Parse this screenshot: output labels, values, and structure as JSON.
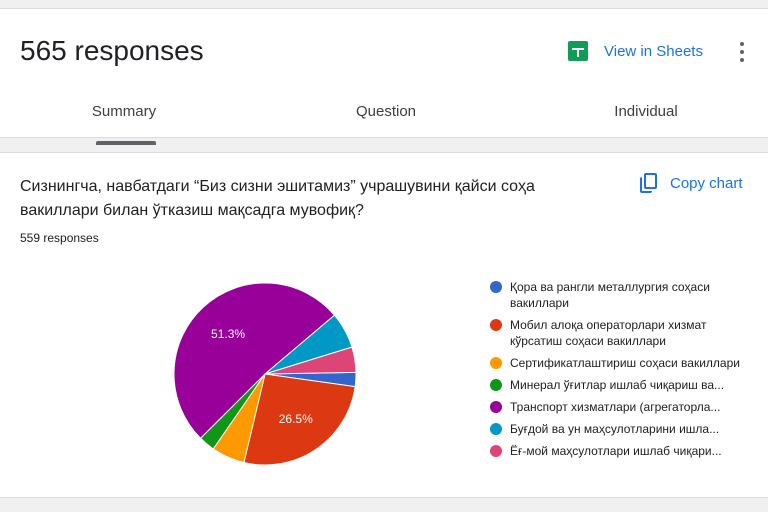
{
  "header": {
    "responses_title": "565 responses",
    "sheets_label": "View in Sheets",
    "sheets_icon": "sheets-icon",
    "menu_icon": "more-vert-icon"
  },
  "tabs": [
    {
      "label": "Summary",
      "active": true
    },
    {
      "label": "Question",
      "active": false
    },
    {
      "label": "Individual",
      "active": false
    }
  ],
  "question": {
    "title": "Сизнингча, навбатдаги “Биз сизни эшитамиз” учрашувини қайси соҳа вакиллари билан ўтказиш мақсадга мувофиқ?",
    "count": "559 responses",
    "copy_label": "Copy chart",
    "copy_icon": "copy-icon"
  },
  "chart_data": {
    "type": "pie",
    "slices": [
      {
        "label": "Қора ва рангли металлургия соҳаси вакиллари",
        "value": 2.5,
        "color": "#3366cc"
      },
      {
        "label": "Мобил алоқа операторлари хизмат кўрсатиш соҳаси вакиллари",
        "value": 26.5,
        "color": "#dc3912",
        "data_label": "26.5%"
      },
      {
        "label": "Сертификатлаштириш соҳаси вакиллари",
        "value": 5.9,
        "color": "#ff9900"
      },
      {
        "label": "Минерал ўғитлар ишлаб чиқариш ва...",
        "value": 2.9,
        "color": "#109618"
      },
      {
        "label": "Транспорт хизматлари (агрегаторла...",
        "value": 51.3,
        "color": "#990099",
        "data_label": "51.3%"
      },
      {
        "label": "Буғдой ва ун маҳсулотларини ишла...",
        "value": 6.4,
        "color": "#0099c6"
      },
      {
        "label": "Ёғ-мой маҳсулотлари ишлаб чиқари...",
        "value": 4.5,
        "color": "#dd4477"
      }
    ]
  }
}
